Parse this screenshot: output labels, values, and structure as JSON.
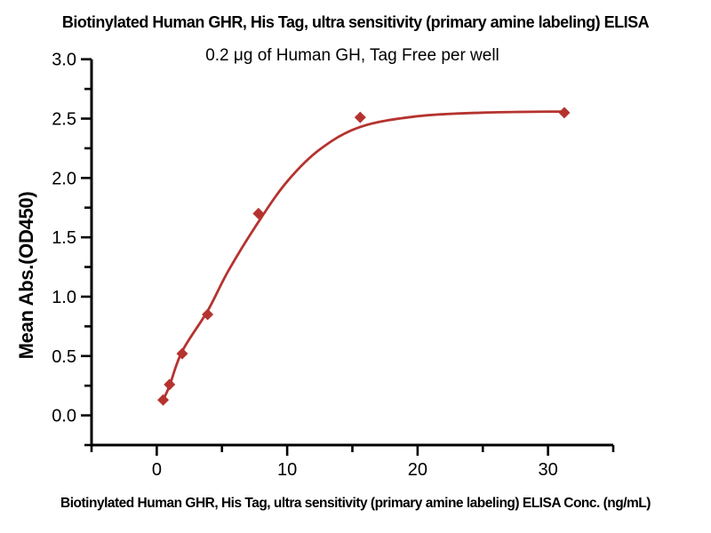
{
  "figure": {
    "background": "#ffffff"
  },
  "chart_data": {
    "type": "scatter",
    "title": "Biotinylated Human GHR, His Tag, ultra sensitivity (primary amine labeling) ELISA",
    "subtitle": "0.2 μg of Human GH, Tag Free per well",
    "xlabel": "Biotinylated Human GHR, His Tag, ultra sensitivity (primary amine labeling) ELISA Conc. (ng/mL)",
    "ylabel": "Mean Abs.(OD450)",
    "xlim": [
      -5,
      35
    ],
    "ylim": [
      -0.25,
      3.0
    ],
    "grid": false,
    "legend": "none",
    "x_major_ticks": {
      "values": [
        0,
        10,
        20,
        30
      ],
      "labels": [
        "0",
        "10",
        "20",
        "30"
      ]
    },
    "x_minor_ticks": [
      -5,
      5,
      15,
      25,
      35
    ],
    "y_major_ticks": {
      "values": [
        0,
        0.5,
        1.0,
        1.5,
        2.0,
        2.5,
        3.0
      ],
      "labels": [
        "0.0",
        "0.5",
        "1.0",
        "1.5",
        "2.0",
        "2.5",
        "3.0"
      ]
    },
    "y_minor_ticks": [
      -0.25,
      0.25,
      0.75,
      1.25,
      1.75,
      2.25,
      2.75
    ],
    "series": [
      {
        "name": "Human GH, Tag Free",
        "marker": "diamond",
        "x": [
          0.49,
          0.98,
          1.95,
          3.9,
          7.8,
          15.6,
          31.25
        ],
        "y": [
          0.13,
          0.26,
          0.52,
          0.85,
          1.7,
          2.51,
          2.55
        ]
      }
    ],
    "fit_curve": [
      [
        0.49,
        0.13
      ],
      [
        0.98,
        0.25
      ],
      [
        1.95,
        0.54
      ],
      [
        3.9,
        0.88
      ],
      [
        5.5,
        1.22
      ],
      [
        7.8,
        1.63
      ],
      [
        10,
        1.97
      ],
      [
        12.5,
        2.24
      ],
      [
        15.6,
        2.43
      ],
      [
        20,
        2.52
      ],
      [
        25,
        2.55
      ],
      [
        31.25,
        2.56
      ]
    ],
    "colors": {
      "series": "#b5332f",
      "axis": "#000000",
      "text": "#000000"
    }
  }
}
